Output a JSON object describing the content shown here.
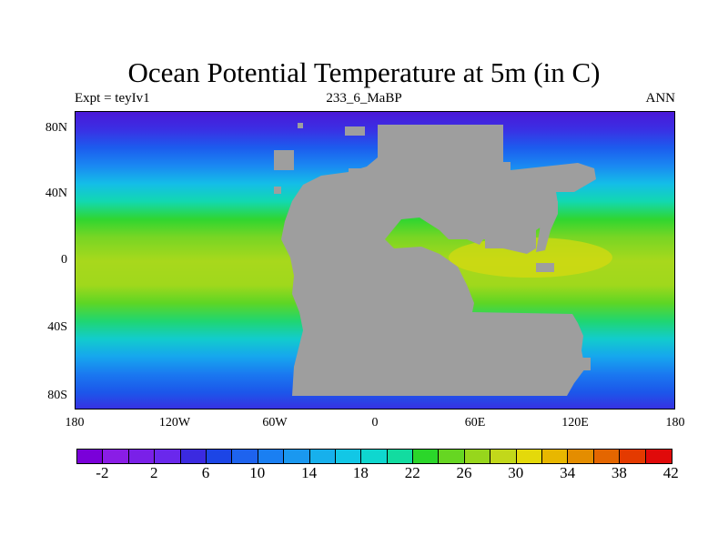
{
  "title": "Ocean Potential Temperature at 5m (in C)",
  "subtitle_left": "Expt = teyIv1",
  "subtitle_center": "233_6_MaBP",
  "subtitle_right": "ANN",
  "lat_labels": [
    "80N",
    "40N",
    "0",
    "40S",
    "80S"
  ],
  "lon_labels": [
    "180",
    "120W",
    "60W",
    "0",
    "60E",
    "120E",
    "180"
  ],
  "colorbar": {
    "colors": [
      "#7a00d9",
      "#8a1de6",
      "#7a20e8",
      "#6a28ec",
      "#3b2ae0",
      "#1c45e6",
      "#1e63ee",
      "#1a7ff2",
      "#1a98f0",
      "#17b0ec",
      "#12c7e6",
      "#0fd7cf",
      "#12dca0",
      "#2bd62a",
      "#66d622",
      "#97d61c",
      "#c2d81a",
      "#e4d90a",
      "#e8b700",
      "#e48d00",
      "#e46600",
      "#e43a00",
      "#e00a0a"
    ],
    "labels": [
      "-2",
      "2",
      "6",
      "10",
      "14",
      "18",
      "22",
      "26",
      "30",
      "34",
      "38",
      "42"
    ]
  },
  "land_color": "#9e9e9e"
}
